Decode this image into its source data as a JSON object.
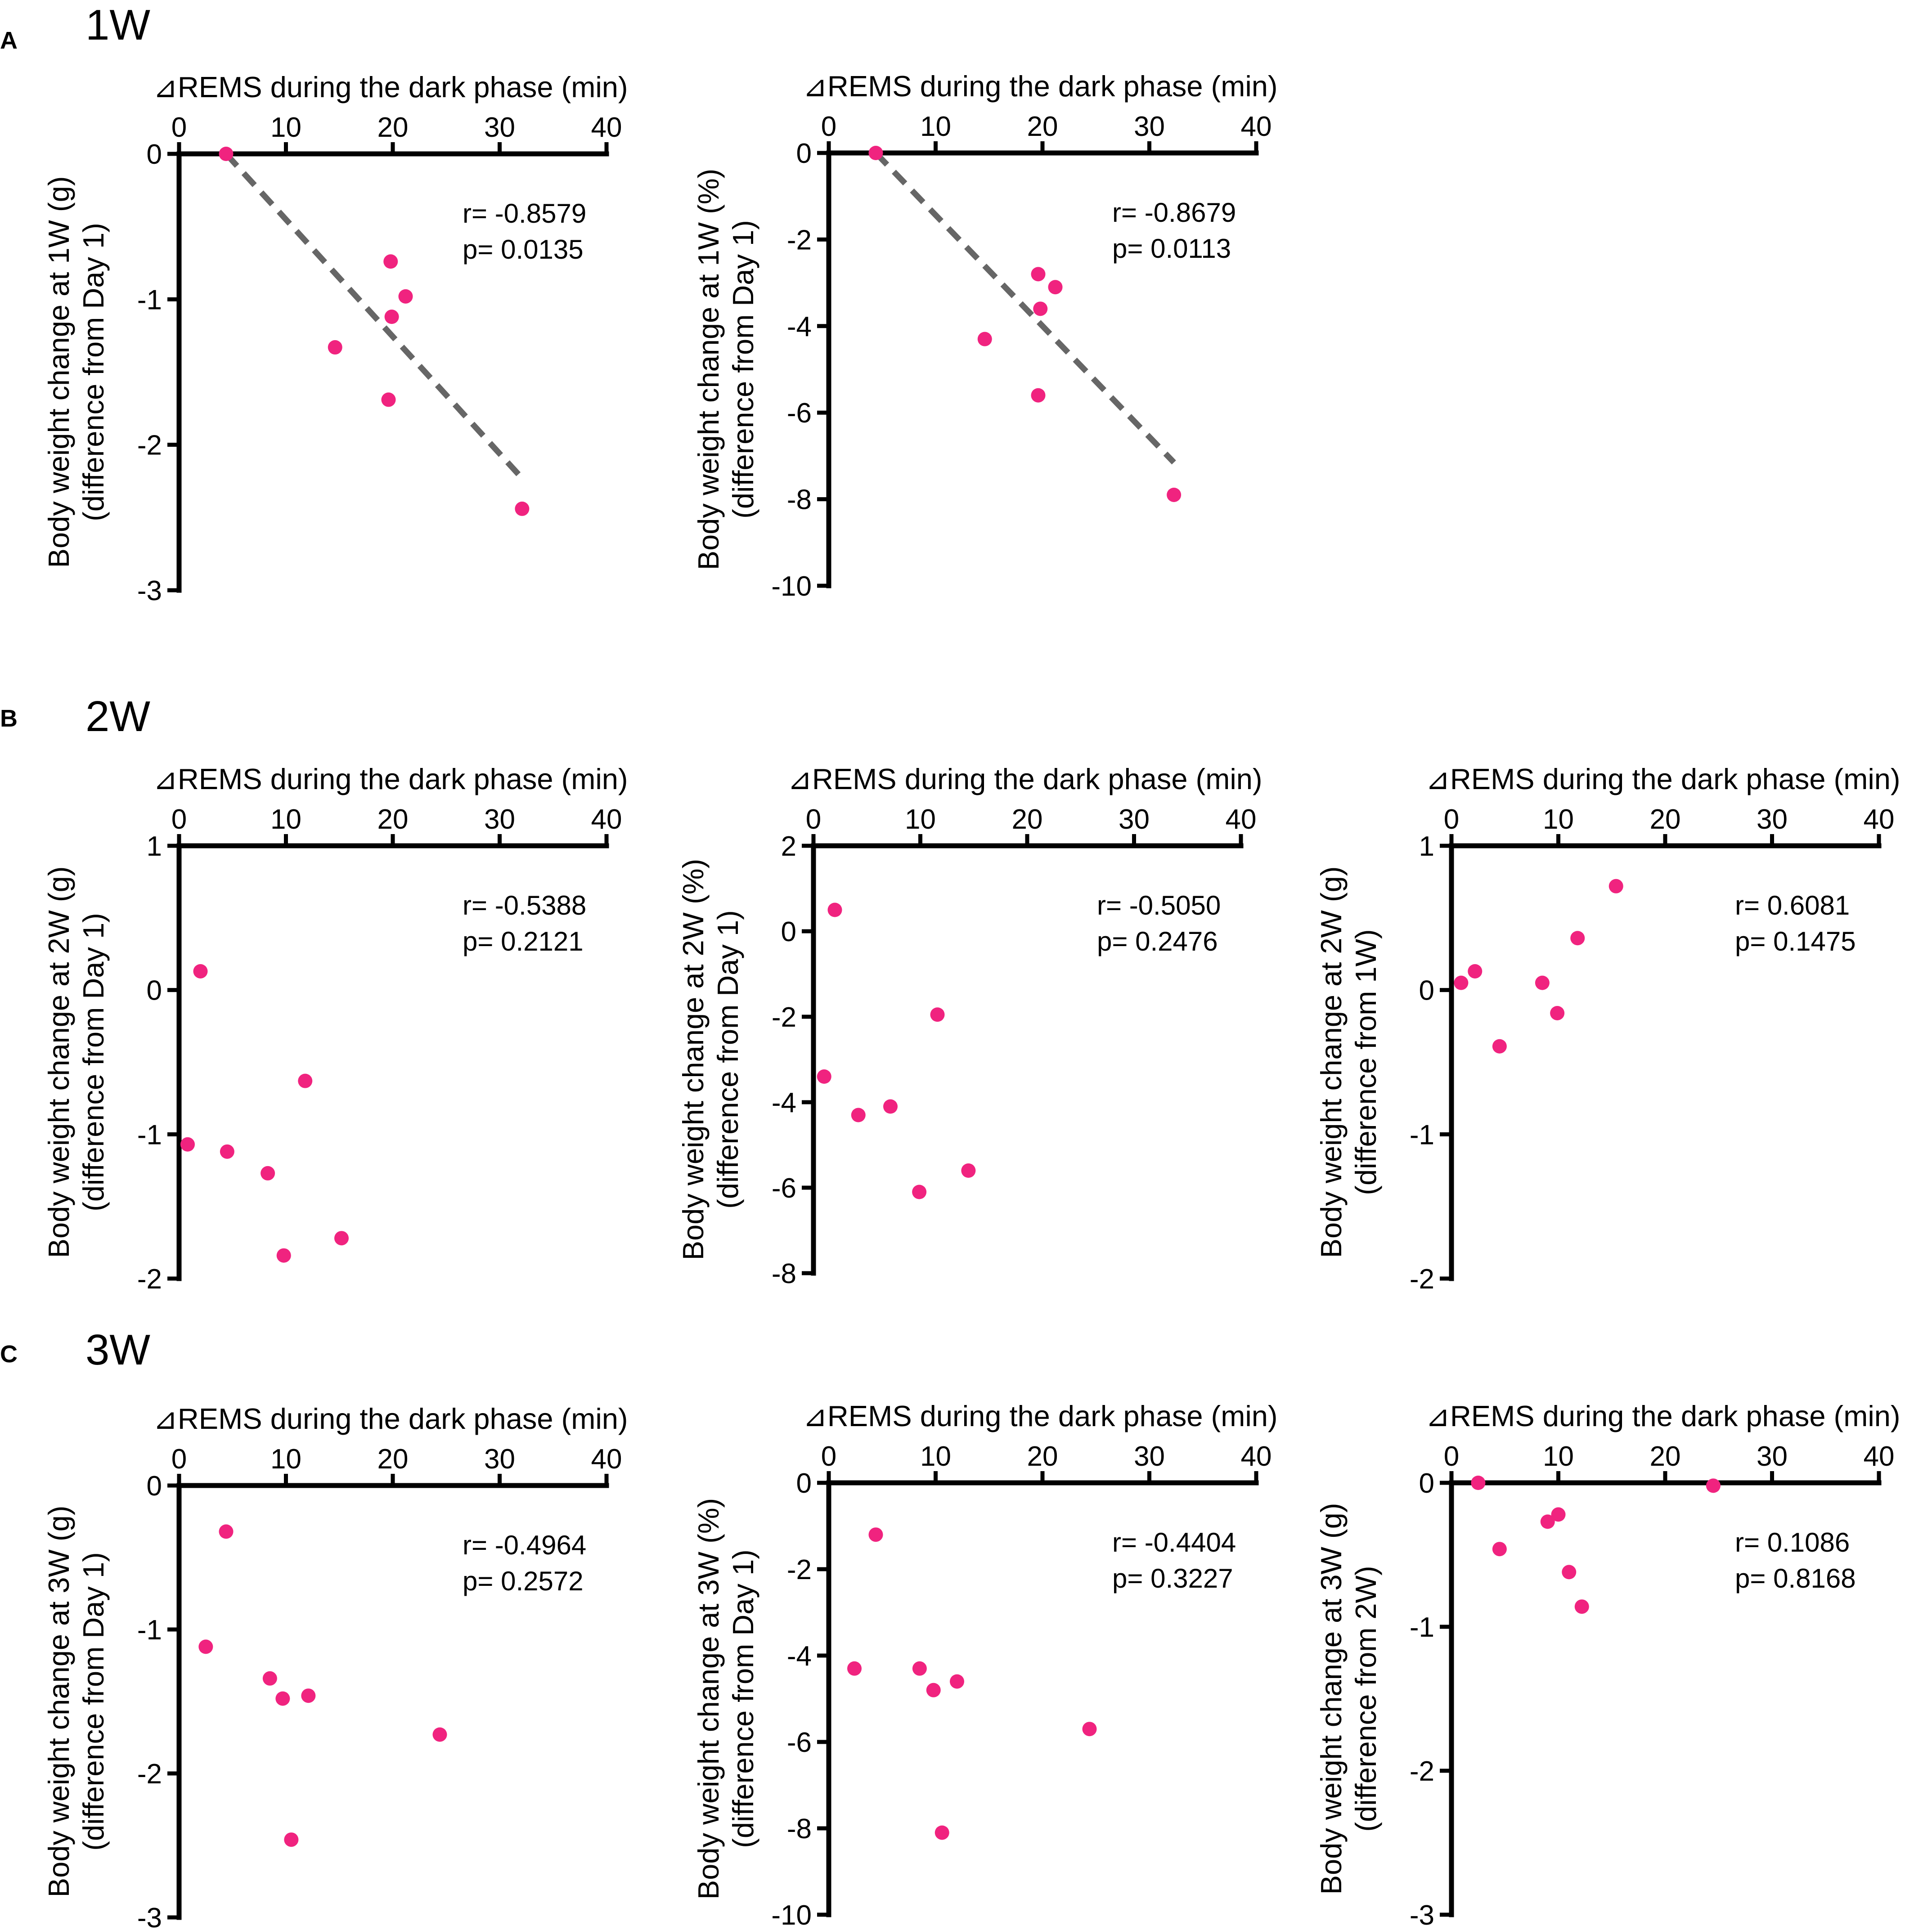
{
  "colors": {
    "point": "#f0237f",
    "fit": "#666666",
    "axis": "#000000"
  },
  "panels": [
    {
      "letter": "A",
      "title": "1W"
    },
    {
      "letter": "B",
      "title": "2W"
    },
    {
      "letter": "C",
      "title": "3W"
    }
  ],
  "chart_data": [
    {
      "type": "scatter",
      "panel": "A",
      "xlabel": "⊿REMS during the dark phase (min)",
      "ylabel": [
        "Body weight change at 1W (g)",
        "(difference from Day 1)"
      ],
      "xlim": [
        0,
        40
      ],
      "ylim": [
        -3,
        0
      ],
      "xticks": [
        0,
        10,
        20,
        30,
        40
      ],
      "yticks": [
        0,
        -1,
        -2,
        -3
      ],
      "stats": [
        "r= -0.8579",
        "p= 0.0135"
      ],
      "x": [
        4.4,
        19.8,
        21.2,
        19.9,
        14.6,
        19.6,
        32.1
      ],
      "y": [
        0,
        -0.74,
        -0.98,
        -1.12,
        -1.33,
        -1.69,
        -2.44
      ],
      "fit": {
        "x": [
          4.4,
          32.1
        ],
        "y": [
          0,
          -2.23
        ]
      }
    },
    {
      "type": "scatter",
      "panel": "A",
      "xlabel": "⊿REMS during the dark phase (min)",
      "ylabel": [
        "Body weight change at 1W (%)",
        "(difference from Day 1)"
      ],
      "xlim": [
        0,
        40
      ],
      "ylim": [
        -10,
        0
      ],
      "xticks": [
        0,
        10,
        20,
        30,
        40
      ],
      "yticks": [
        0,
        -2,
        -4,
        -6,
        -8,
        -10
      ],
      "stats": [
        "r= -0.8679",
        "p= 0.0113"
      ],
      "x": [
        4.4,
        19.6,
        21.2,
        19.8,
        14.6,
        19.6,
        32.3
      ],
      "y": [
        0,
        -2.8,
        -3.1,
        -3.6,
        -4.3,
        -5.6,
        -7.9
      ],
      "fit": {
        "x": [
          4.4,
          32.3
        ],
        "y": [
          0,
          -7.15
        ]
      }
    },
    {
      "type": "scatter",
      "panel": "B",
      "xlabel": "⊿REMS during the dark phase (min)",
      "ylabel": [
        "Body weight change at 2W (g)",
        "(difference from Day 1)"
      ],
      "xlim": [
        0,
        40
      ],
      "ylim": [
        -2,
        1
      ],
      "xticks": [
        0,
        10,
        20,
        30,
        40
      ],
      "yticks": [
        1,
        0,
        -1,
        -2
      ],
      "stats": [
        "r= -0.5388",
        "p= 0.2121"
      ],
      "x": [
        2.0,
        11.8,
        0.8,
        4.5,
        8.3,
        15.2,
        9.8
      ],
      "y": [
        0.13,
        -0.63,
        -1.07,
        -1.12,
        -1.27,
        -1.72,
        -1.84
      ]
    },
    {
      "type": "scatter",
      "panel": "B",
      "xlabel": "⊿REMS during the dark phase (min)",
      "ylabel": [
        "Body weight change at 2W (%)",
        "(difference from Day 1)"
      ],
      "xlim": [
        0,
        40
      ],
      "ylim": [
        -8,
        2
      ],
      "xticks": [
        0,
        10,
        20,
        30,
        40
      ],
      "yticks": [
        2,
        0,
        -2,
        -4,
        -6,
        -8
      ],
      "stats": [
        "r= -0.5050",
        "p= 0.2476"
      ],
      "x": [
        2.0,
        11.6,
        1.0,
        7.2,
        4.2,
        14.5,
        9.9
      ],
      "y": [
        0.5,
        -1.95,
        -3.4,
        -4.1,
        -4.3,
        -5.6,
        -6.1
      ]
    },
    {
      "type": "scatter",
      "panel": "B",
      "xlabel": "⊿REMS during the dark phase (min)",
      "ylabel": [
        "Body weight change at 2W (g)",
        "(difference from 1W)"
      ],
      "xlim": [
        0,
        40
      ],
      "ylim": [
        -2,
        1
      ],
      "xticks": [
        0,
        10,
        20,
        30,
        40
      ],
      "yticks": [
        1,
        0,
        -1,
        -2
      ],
      "stats": [
        "r= 0.6081",
        "p= 0.1475"
      ],
      "x": [
        15.4,
        11.8,
        2.2,
        0.9,
        8.5,
        9.9,
        4.5
      ],
      "y": [
        0.72,
        0.36,
        0.13,
        0.05,
        0.05,
        -0.16,
        -0.39
      ]
    },
    {
      "type": "scatter",
      "panel": "C",
      "xlabel": "⊿REMS during the dark phase (min)",
      "ylabel": [
        "Body weight change at 3W (g)",
        "(difference from Day 1)"
      ],
      "xlim": [
        0,
        40
      ],
      "ylim": [
        -3,
        0
      ],
      "xticks": [
        0,
        10,
        20,
        30,
        40
      ],
      "yticks": [
        0,
        -1,
        -2,
        -3
      ],
      "stats": [
        "r= -0.4964",
        "p= 0.2572"
      ],
      "x": [
        4.4,
        2.5,
        8.5,
        12.1,
        9.7,
        24.4,
        10.5
      ],
      "y": [
        -0.32,
        -1.12,
        -1.34,
        -1.46,
        -1.48,
        -1.73,
        -2.46
      ]
    },
    {
      "type": "scatter",
      "panel": "C",
      "xlabel": "⊿REMS during the dark phase (min)",
      "ylabel": [
        "Body weight change at 3W (%)",
        "(difference from Day 1)"
      ],
      "xlim": [
        0,
        40
      ],
      "ylim": [
        -10,
        0
      ],
      "xticks": [
        0,
        10,
        20,
        30,
        40
      ],
      "yticks": [
        0,
        -2,
        -4,
        -6,
        -8,
        -10
      ],
      "stats": [
        "r= -0.4404",
        "p= 0.3227"
      ],
      "x": [
        4.4,
        2.4,
        8.5,
        12.0,
        9.8,
        24.4,
        10.6
      ],
      "y": [
        -1.2,
        -4.3,
        -4.3,
        -4.6,
        -4.8,
        -5.7,
        -8.1
      ]
    },
    {
      "type": "scatter",
      "panel": "C",
      "xlabel": "⊿REMS during the dark phase (min)",
      "ylabel": [
        "Body weight change at 3W (g)",
        "(difference from 2W)"
      ],
      "xlim": [
        0,
        40
      ],
      "ylim": [
        -3,
        0
      ],
      "xticks": [
        0,
        10,
        20,
        30,
        40
      ],
      "yticks": [
        0,
        -1,
        -2,
        -3
      ],
      "stats": [
        "r= 0.1086",
        "p= 0.8168"
      ],
      "x": [
        2.5,
        24.5,
        10.0,
        9.0,
        4.5,
        11.0,
        12.2
      ],
      "y": [
        0,
        -0.02,
        -0.22,
        -0.27,
        -0.46,
        -0.62,
        -0.86
      ]
    }
  ]
}
